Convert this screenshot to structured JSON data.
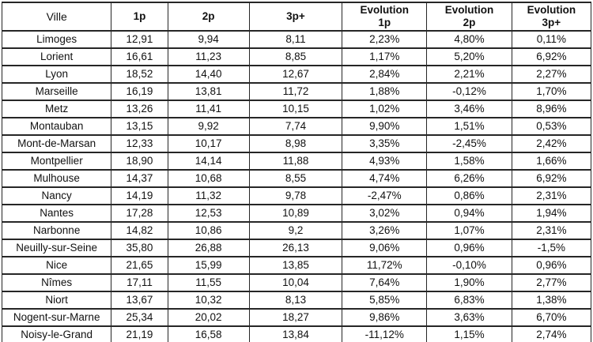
{
  "chart_data": {
    "type": "table",
    "columns": [
      "Ville",
      "1p",
      "2p",
      "3p+",
      "Evolution\n1p",
      "Evolution\n2p",
      "Evolution\n3p+"
    ],
    "rows": [
      [
        "Limoges",
        "12,91",
        "9,94",
        "8,11",
        "2,23%",
        "4,80%",
        "0,11%"
      ],
      [
        "Lorient",
        "16,61",
        "11,23",
        "8,85",
        "1,17%",
        "5,20%",
        "6,92%"
      ],
      [
        "Lyon",
        "18,52",
        "14,40",
        "12,67",
        "2,84%",
        "2,21%",
        "2,27%"
      ],
      [
        "Marseille",
        "16,19",
        "13,81",
        "11,72",
        "1,88%",
        "-0,12%",
        "1,70%"
      ],
      [
        "Metz",
        "13,26",
        "11,41",
        "10,15",
        "1,02%",
        "3,46%",
        "8,96%"
      ],
      [
        "Montauban",
        "13,15",
        "9,92",
        "7,74",
        "9,90%",
        "1,51%",
        "0,53%"
      ],
      [
        "Mont-de-Marsan",
        "12,33",
        "10,17",
        "8,98",
        "3,35%",
        "-2,45%",
        "2,42%"
      ],
      [
        "Montpellier",
        "18,90",
        "14,14",
        "11,88",
        "4,93%",
        "1,58%",
        "1,66%"
      ],
      [
        "Mulhouse",
        "14,37",
        "10,68",
        "8,55",
        "4,74%",
        "6,26%",
        "6,92%"
      ],
      [
        "Nancy",
        "14,19",
        "11,32",
        "9,78",
        "-2,47%",
        "0,86%",
        "2,31%"
      ],
      [
        "Nantes",
        "17,28",
        "12,53",
        "10,89",
        "3,02%",
        "0,94%",
        "1,94%"
      ],
      [
        "Narbonne",
        "14,82",
        "10,86",
        "9,2",
        "3,26%",
        "1,07%",
        "2,31%"
      ],
      [
        "Neuilly-sur-Seine",
        "35,80",
        "26,88",
        "26,13",
        "9,06%",
        "0,96%",
        "-1,5%"
      ],
      [
        "Nice",
        "21,65",
        "15,99",
        "13,85",
        "11,72%",
        "-0,10%",
        "0,96%"
      ],
      [
        "Nîmes",
        "17,11",
        "11,55",
        "10,04",
        "7,64%",
        "1,90%",
        "2,77%"
      ],
      [
        "Niort",
        "13,67",
        "10,32",
        "8,13",
        "5,85%",
        "6,83%",
        "1,38%"
      ],
      [
        "Nogent-sur-Marne",
        "25,34",
        "20,02",
        "18,27",
        "9,86%",
        "3,63%",
        "6,70%"
      ],
      [
        "Noisy-le-Grand",
        "21,19",
        "16,58",
        "13,84",
        "-11,12%",
        "1,15%",
        "2,74%"
      ]
    ]
  }
}
